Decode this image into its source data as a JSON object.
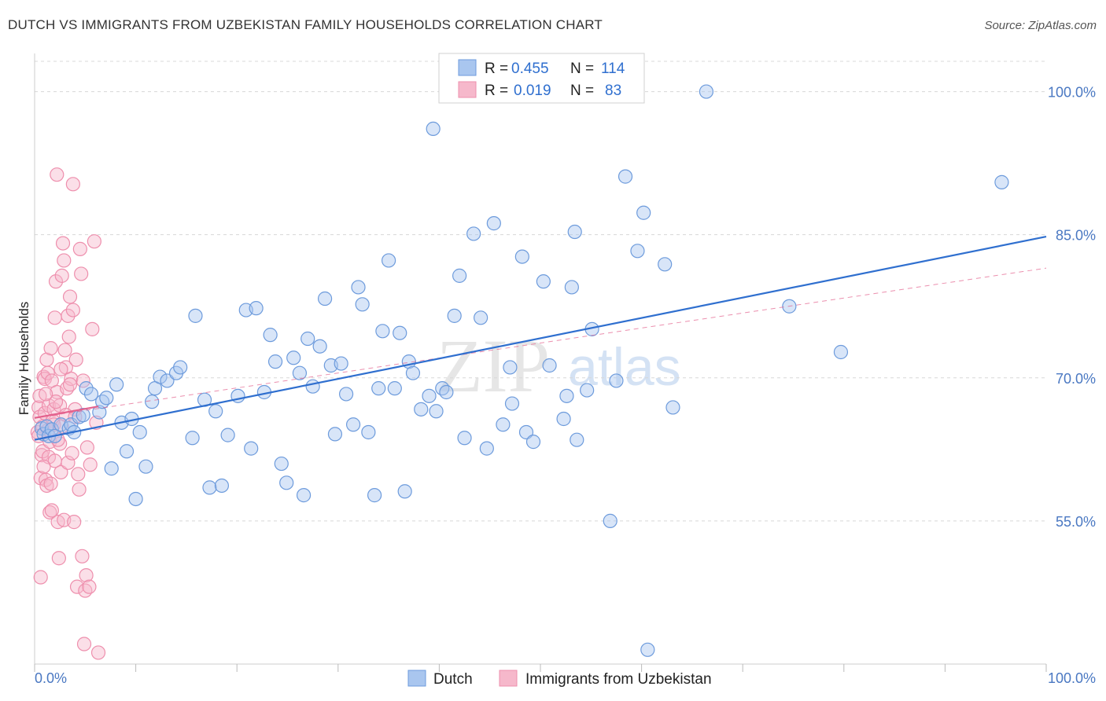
{
  "title": "DUTCH VS IMMIGRANTS FROM UZBEKISTAN FAMILY HOUSEHOLDS CORRELATION CHART",
  "source": "Source: ZipAtlas.com",
  "watermark": {
    "zip": "ZIP",
    "atlas": "atlas"
  },
  "colors": {
    "dutch_fill": "#a9c6ef",
    "dutch_stroke": "#6d9bdc",
    "dutch_line": "#2f6fcf",
    "uzb_fill": "#f6b8cb",
    "uzb_stroke": "#ee8fad",
    "uzb_line": "#e3608c",
    "grid": "#d8d8d8",
    "axis_text": "#4a78c2"
  },
  "legend": {
    "rows": [
      {
        "r_label": "R =",
        "r_value": "0.455",
        "n_label": "N =",
        "n_value": "114"
      },
      {
        "r_label": "R =",
        "r_value": "0.019",
        "n_label": "N =",
        "n_value": "83"
      }
    ]
  },
  "chart_data": {
    "type": "scatter",
    "title": "DUTCH VS IMMIGRANTS FROM UZBEKISTAN FAMILY HOUSEHOLDS CORRELATION CHART",
    "xlabel": "",
    "ylabel": "Family Households",
    "xlim": [
      0,
      100
    ],
    "ylim": [
      40,
      104
    ],
    "x_tick_labels": [
      "0.0%",
      "100.0%"
    ],
    "y_ticks": [
      55,
      70,
      85,
      100
    ],
    "y_tick_labels": [
      "55.0%",
      "70.0%",
      "85.0%",
      "100.0%"
    ],
    "legend_position": "bottom-center",
    "series": [
      {
        "name": "Dutch",
        "r": 0.455,
        "n": 114,
        "trend": {
          "x": [
            0,
            100
          ],
          "y": [
            63.5,
            84.8
          ]
        },
        "points": [
          [
            0.7,
            64.7
          ],
          [
            0.9,
            64.1
          ],
          [
            1.2,
            64.9
          ],
          [
            1.4,
            63.9
          ],
          [
            1.7,
            64.6
          ],
          [
            2.0,
            63.9
          ],
          [
            2.6,
            65.1
          ],
          [
            3.4,
            64.7
          ],
          [
            3.6,
            65.1
          ],
          [
            3.9,
            64.3
          ],
          [
            4.4,
            65.9
          ],
          [
            4.8,
            66.1
          ],
          [
            5.1,
            68.9
          ],
          [
            5.6,
            68.3
          ],
          [
            6.4,
            66.4
          ],
          [
            6.7,
            67.5
          ],
          [
            7.1,
            67.9
          ],
          [
            7.6,
            60.5
          ],
          [
            8.1,
            69.3
          ],
          [
            8.6,
            65.3
          ],
          [
            9.1,
            62.3
          ],
          [
            9.6,
            65.7
          ],
          [
            10.0,
            57.3
          ],
          [
            10.4,
            64.3
          ],
          [
            11.0,
            60.7
          ],
          [
            11.6,
            67.5
          ],
          [
            11.9,
            68.9
          ],
          [
            12.4,
            70.1
          ],
          [
            13.1,
            69.7
          ],
          [
            14.0,
            70.5
          ],
          [
            14.4,
            71.1
          ],
          [
            15.6,
            63.7
          ],
          [
            15.9,
            76.5
          ],
          [
            16.8,
            67.7
          ],
          [
            17.3,
            58.5
          ],
          [
            17.9,
            66.5
          ],
          [
            18.5,
            58.7
          ],
          [
            19.1,
            64.0
          ],
          [
            20.1,
            68.1
          ],
          [
            20.9,
            77.1
          ],
          [
            21.4,
            62.6
          ],
          [
            21.9,
            77.3
          ],
          [
            22.7,
            68.5
          ],
          [
            23.3,
            74.5
          ],
          [
            23.8,
            71.7
          ],
          [
            24.4,
            61.0
          ],
          [
            24.9,
            59.0
          ],
          [
            25.6,
            72.1
          ],
          [
            26.2,
            70.5
          ],
          [
            26.6,
            57.7
          ],
          [
            27.0,
            74.1
          ],
          [
            27.5,
            69.1
          ],
          [
            28.2,
            73.3
          ],
          [
            28.7,
            78.3
          ],
          [
            29.3,
            71.3
          ],
          [
            29.7,
            64.1
          ],
          [
            30.3,
            71.5
          ],
          [
            30.8,
            68.3
          ],
          [
            31.5,
            65.1
          ],
          [
            32.0,
            79.5
          ],
          [
            32.4,
            77.7
          ],
          [
            33.0,
            64.3
          ],
          [
            33.6,
            57.7
          ],
          [
            34.0,
            68.9
          ],
          [
            34.4,
            74.9
          ],
          [
            35.0,
            82.3
          ],
          [
            35.6,
            68.9
          ],
          [
            36.1,
            74.7
          ],
          [
            36.6,
            58.1
          ],
          [
            37.0,
            71.7
          ],
          [
            37.4,
            70.5
          ],
          [
            38.2,
            66.7
          ],
          [
            39.0,
            68.1
          ],
          [
            39.4,
            96.1
          ],
          [
            39.7,
            66.5
          ],
          [
            40.3,
            68.9
          ],
          [
            40.7,
            68.5
          ],
          [
            41.5,
            76.5
          ],
          [
            42.0,
            80.7
          ],
          [
            42.5,
            63.7
          ],
          [
            43.4,
            85.1
          ],
          [
            44.1,
            76.3
          ],
          [
            44.7,
            62.6
          ],
          [
            45.4,
            86.2
          ],
          [
            46.3,
            65.1
          ],
          [
            47.0,
            71.1
          ],
          [
            47.2,
            67.3
          ],
          [
            48.2,
            82.7
          ],
          [
            48.6,
            64.3
          ],
          [
            49.3,
            63.3
          ],
          [
            50.3,
            80.1
          ],
          [
            50.9,
            71.3
          ],
          [
            52.3,
            65.7
          ],
          [
            52.6,
            68.1
          ],
          [
            53.1,
            79.5
          ],
          [
            53.4,
            85.3
          ],
          [
            53.6,
            63.5
          ],
          [
            54.6,
            68.7
          ],
          [
            55.1,
            75.1
          ],
          [
            56.9,
            55.0
          ],
          [
            57.5,
            69.7
          ],
          [
            58.4,
            91.1
          ],
          [
            59.6,
            83.3
          ],
          [
            60.2,
            87.3
          ],
          [
            60.6,
            41.5
          ],
          [
            62.3,
            81.9
          ],
          [
            63.1,
            66.9
          ],
          [
            66.4,
            100.0
          ],
          [
            74.6,
            77.5
          ],
          [
            79.7,
            72.7
          ],
          [
            95.6,
            90.5
          ]
        ]
      },
      {
        "name": "Immigrants from Uzbekistan",
        "r": 0.019,
        "n": 83,
        "trend_solid": {
          "x": [
            0,
            6.3
          ],
          "y": [
            65.8,
            67.0
          ]
        },
        "trend_dashed": {
          "x": [
            0,
            100
          ],
          "y": [
            65.8,
            81.5
          ]
        },
        "points": [
          [
            0.3,
            64.3
          ],
          [
            0.4,
            66.9
          ],
          [
            0.5,
            68.1
          ],
          [
            0.5,
            65.9
          ],
          [
            0.6,
            59.5
          ],
          [
            0.7,
            61.9
          ],
          [
            0.8,
            64.9
          ],
          [
            0.8,
            62.3
          ],
          [
            0.9,
            70.1
          ],
          [
            1.0,
            69.9
          ],
          [
            1.0,
            66.3
          ],
          [
            1.1,
            59.3
          ],
          [
            1.2,
            71.9
          ],
          [
            1.2,
            58.7
          ],
          [
            1.3,
            70.5
          ],
          [
            1.4,
            67.1
          ],
          [
            1.4,
            61.7
          ],
          [
            1.5,
            63.3
          ],
          [
            1.5,
            55.9
          ],
          [
            1.6,
            73.1
          ],
          [
            1.7,
            69.7
          ],
          [
            1.8,
            65.5
          ],
          [
            1.9,
            66.7
          ],
          [
            2.0,
            61.3
          ],
          [
            2.0,
            76.3
          ],
          [
            2.1,
            80.1
          ],
          [
            2.2,
            91.3
          ],
          [
            2.2,
            68.5
          ],
          [
            2.3,
            54.9
          ],
          [
            2.4,
            51.1
          ],
          [
            2.5,
            67.1
          ],
          [
            2.5,
            63.1
          ],
          [
            2.6,
            60.1
          ],
          [
            2.7,
            80.7
          ],
          [
            2.8,
            84.1
          ],
          [
            2.9,
            82.3
          ],
          [
            2.9,
            55.1
          ],
          [
            3.0,
            72.9
          ],
          [
            3.1,
            71.1
          ],
          [
            3.2,
            68.9
          ],
          [
            3.3,
            76.5
          ],
          [
            3.3,
            61.1
          ],
          [
            3.4,
            74.3
          ],
          [
            3.5,
            78.5
          ],
          [
            3.6,
            69.9
          ],
          [
            3.7,
            62.1
          ],
          [
            3.8,
            90.3
          ],
          [
            3.8,
            77.1
          ],
          [
            3.9,
            54.9
          ],
          [
            4.0,
            66.7
          ],
          [
            4.1,
            71.9
          ],
          [
            4.2,
            48.1
          ],
          [
            4.3,
            59.9
          ],
          [
            4.4,
            58.3
          ],
          [
            4.5,
            83.5
          ],
          [
            4.6,
            80.9
          ],
          [
            4.7,
            51.3
          ],
          [
            4.8,
            69.7
          ],
          [
            4.9,
            42.1
          ],
          [
            5.0,
            47.7
          ],
          [
            5.1,
            49.3
          ],
          [
            5.2,
            62.7
          ],
          [
            5.4,
            48.1
          ],
          [
            5.5,
            60.9
          ],
          [
            5.7,
            75.1
          ],
          [
            5.9,
            84.3
          ],
          [
            6.1,
            65.3
          ],
          [
            6.3,
            41.2
          ],
          [
            0.6,
            49.1
          ],
          [
            1.7,
            56.1
          ],
          [
            2.1,
            67.5
          ],
          [
            2.3,
            63.5
          ],
          [
            1.1,
            68.3
          ],
          [
            1.3,
            64.5
          ],
          [
            0.9,
            60.7
          ],
          [
            2.6,
            70.9
          ],
          [
            3.1,
            66.1
          ],
          [
            0.4,
            63.9
          ],
          [
            1.9,
            65.1
          ],
          [
            3.5,
            69.3
          ],
          [
            2.7,
            64.9
          ],
          [
            1.6,
            58.9
          ],
          [
            4.0,
            65.9
          ]
        ]
      }
    ]
  },
  "bottom_legend": {
    "dutch_label": "Dutch",
    "uzb_label": "Immigrants from Uzbekistan"
  }
}
